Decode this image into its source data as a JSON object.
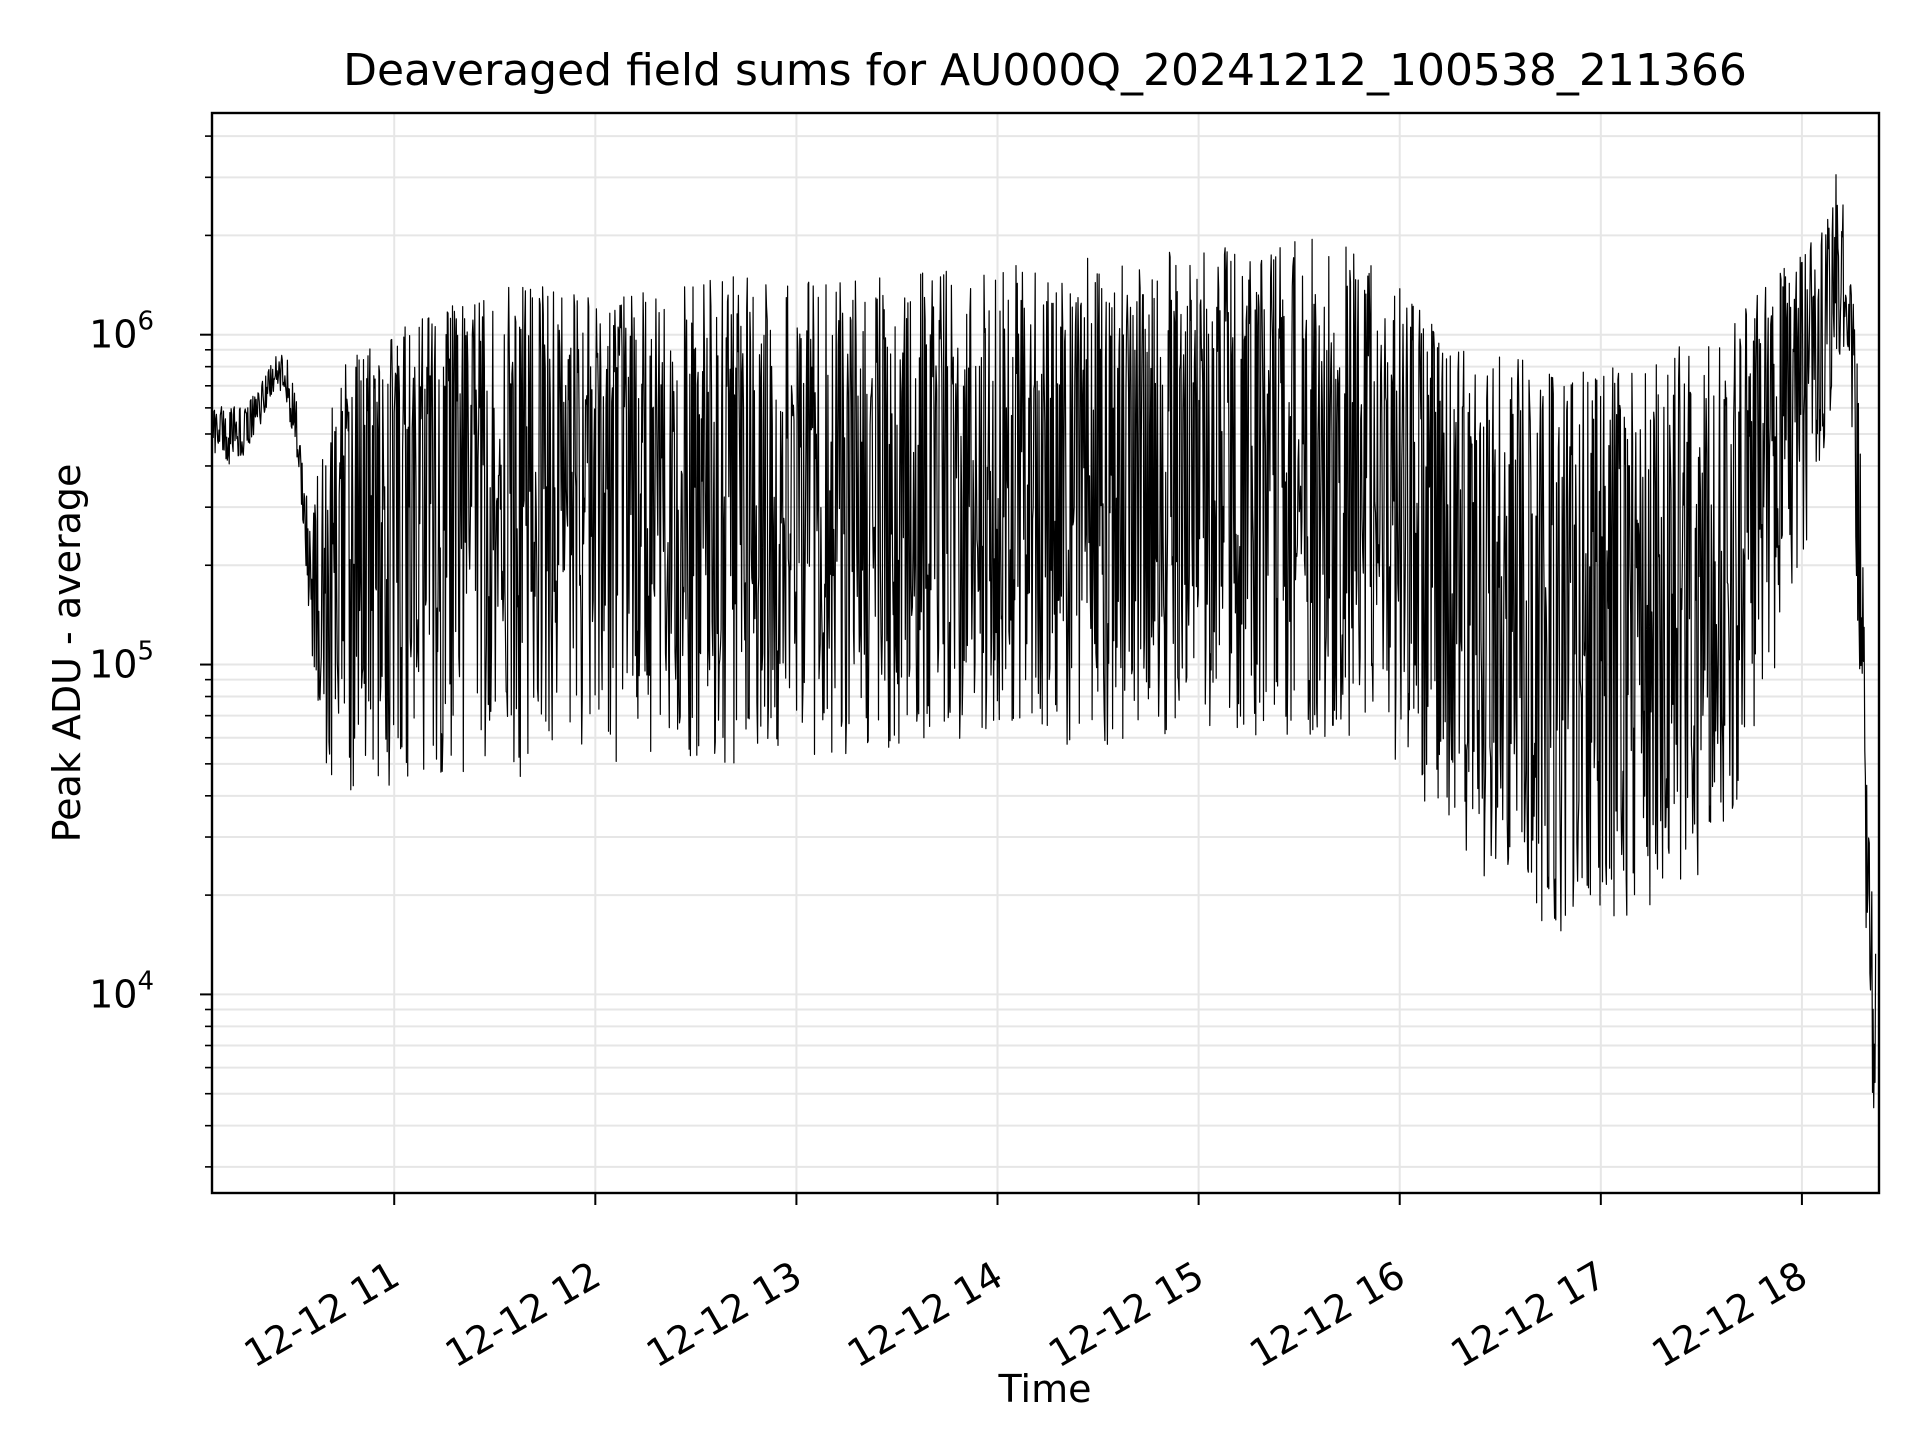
{
  "chart_data": {
    "type": "line",
    "title": "Deaveraged field sums for AU000Q_20241212_100538_211366",
    "xlabel": "Time",
    "ylabel": "Peak ADU - average",
    "y_scale": "log",
    "ylim": [
      2500,
      4700000
    ],
    "xlim": [
      "2024-12-12 10:05:38",
      "2024-12-12 18:23:00"
    ],
    "x_ticks": [
      {
        "t": "2024-12-12 11:00",
        "label": "12-12 11"
      },
      {
        "t": "2024-12-12 12:00",
        "label": "12-12 12"
      },
      {
        "t": "2024-12-12 13:00",
        "label": "12-12 13"
      },
      {
        "t": "2024-12-12 14:00",
        "label": "12-12 14"
      },
      {
        "t": "2024-12-12 15:00",
        "label": "12-12 15"
      },
      {
        "t": "2024-12-12 16:00",
        "label": "12-12 16"
      },
      {
        "t": "2024-12-12 17:00",
        "label": "12-12 17"
      },
      {
        "t": "2024-12-12 18:00",
        "label": "12-12 18"
      }
    ],
    "y_ticks": [
      {
        "value": 10000,
        "base": "10",
        "exp": "4"
      },
      {
        "value": 100000,
        "base": "10",
        "exp": "5"
      },
      {
        "value": 1000000,
        "base": "10",
        "exp": "6"
      }
    ],
    "grid": true,
    "line_color": "#000000",
    "series": [
      {
        "x": [
          "2024-12-12 10:06",
          "2024-12-12 10:10",
          "2024-12-12 10:15",
          "2024-12-12 10:20",
          "2024-12-12 10:25",
          "2024-12-12 10:28",
          "2024-12-12 10:31",
          "2024-12-12 10:33",
          "2024-12-12 10:35",
          "2024-12-12 10:38",
          "2024-12-12 10:42",
          "2024-12-12 10:46",
          "2024-12-12 10:52",
          "2024-12-12 10:58",
          "2024-12-12 11:06",
          "2024-12-12 11:15",
          "2024-12-12 11:25",
          "2024-12-12 11:35",
          "2024-12-12 11:45",
          "2024-12-12 12:00",
          "2024-12-12 12:20",
          "2024-12-12 12:40",
          "2024-12-12 13:00",
          "2024-12-12 13:20",
          "2024-12-12 13:40",
          "2024-12-12 14:00",
          "2024-12-12 14:20",
          "2024-12-12 14:40",
          "2024-12-12 15:00",
          "2024-12-12 15:20",
          "2024-12-12 15:40",
          "2024-12-12 16:00",
          "2024-12-12 16:10",
          "2024-12-12 16:20",
          "2024-12-12 16:35",
          "2024-12-12 16:50",
          "2024-12-12 17:05",
          "2024-12-12 17:20",
          "2024-12-12 17:35",
          "2024-12-12 17:45",
          "2024-12-12 17:55",
          "2024-12-12 18:05",
          "2024-12-12 18:10",
          "2024-12-12 18:14",
          "2024-12-12 18:16",
          "2024-12-12 18:18",
          "2024-12-12 18:20",
          "2024-12-12 18:22"
        ],
        "mean": [
          500000,
          490000,
          510000,
          600000,
          800000,
          700000,
          500000,
          300000,
          180000,
          140000,
          250000,
          320000,
          380000,
          420000,
          520000,
          560000,
          580000,
          600000,
          620000,
          450000,
          380000,
          360000,
          330000,
          310000,
          320000,
          360000,
          400000,
          420000,
          450000,
          480000,
          500000,
          420000,
          300000,
          220000,
          160000,
          140000,
          150000,
          170000,
          220000,
          400000,
          600000,
          900000,
          1500000,
          1300000,
          600000,
          200000,
          20000,
          8000
        ],
        "lo": [
          420000,
          400000,
          430000,
          520000,
          720000,
          600000,
          420000,
          250000,
          110000,
          60000,
          40000,
          40000,
          40000,
          40000,
          45000,
          45000,
          45000,
          45000,
          45000,
          50000,
          50000,
          50000,
          50000,
          55000,
          55000,
          55000,
          55000,
          58000,
          60000,
          60000,
          60000,
          50000,
          35000,
          25000,
          18000,
          15000,
          16000,
          20000,
          25000,
          50000,
          100000,
          300000,
          800000,
          900000,
          200000,
          60000,
          5000,
          3500
        ],
        "hi": [
          620000,
          600000,
          620000,
          700000,
          900000,
          850000,
          620000,
          400000,
          250000,
          600000,
          800000,
          900000,
          950000,
          1000000,
          1100000,
          1200000,
          1300000,
          1400000,
          1400000,
          1300000,
          1400000,
          1500000,
          1500000,
          1500000,
          1600000,
          1600000,
          1700000,
          1800000,
          1800000,
          1900000,
          2000000,
          1400000,
          1100000,
          900000,
          850000,
          800000,
          800000,
          900000,
          1000000,
          1300000,
          1600000,
          2000000,
          3500000,
          2400000,
          1200000,
          300000,
          30000,
          14000
        ]
      }
    ]
  }
}
